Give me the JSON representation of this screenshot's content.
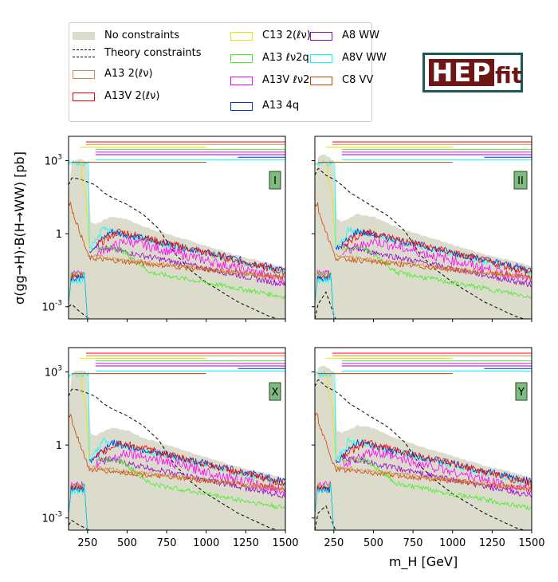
{
  "figure": {
    "y_axis_label": "σ(gg→H)·B(H→WW) [pb]",
    "x_axis_label": "m_H [GeV]",
    "logo": {
      "text_main": "HEP",
      "text_sub": "fit"
    }
  },
  "legend": [
    {
      "label": "No constraints",
      "kind": "fill",
      "color": "#dcdccc"
    },
    {
      "label": "Theory constraints",
      "kind": "dashed",
      "color": "#000000"
    },
    {
      "label": "A13 2(ℓν)",
      "kind": "box",
      "color": "#d08a4a"
    },
    {
      "label": "A13V 2(ℓν)",
      "kind": "box",
      "color": "#ff0000"
    },
    {
      "label": "C13 2(ℓν)",
      "kind": "box",
      "color": "#e6e600"
    },
    {
      "label": "A13 ℓν2q",
      "kind": "box",
      "color": "#44ee22"
    },
    {
      "label": "A13V ℓν2q",
      "kind": "box",
      "color": "#ff00ff"
    },
    {
      "label": "A13 4q",
      "kind": "box",
      "color": "#0033cc"
    },
    {
      "label": "A8 WW",
      "kind": "box",
      "color": "#9900cc"
    },
    {
      "label": "A8V WW",
      "kind": "box",
      "color": "#00ffff"
    },
    {
      "label": "C8 VV",
      "kind": "box",
      "color": "#cc4400"
    }
  ],
  "chart_data": [
    {
      "type": "line",
      "panel_label": "I",
      "xlim": [
        130,
        1500
      ],
      "ylim_log10": [
        -3.5,
        4.0
      ],
      "xticks": [
        "250",
        "500",
        "750",
        "1000",
        "1250",
        "1500"
      ],
      "yticks": [
        "10^3",
        "1",
        "10^-3"
      ],
      "x_tick_labels_shown": false,
      "y_tick_labels_shown": true,
      "series": [
        {
          "name": "No constraints",
          "x": [
            130,
            150,
            180,
            220,
            255,
            265,
            300,
            400,
            500,
            600,
            700,
            800,
            900,
            1000,
            1100,
            1200,
            1300,
            1400,
            1500
          ],
          "log10_upper": [
            1.6,
            2.9,
            3.05,
            3.05,
            2.9,
            0.5,
            0.4,
            0.7,
            0.6,
            0.3,
            0.1,
            -0.1,
            -0.3,
            -0.5,
            -0.7,
            -0.9,
            -1.05,
            -1.2,
            -1.4
          ]
        },
        {
          "name": "Theory constraints",
          "x": [
            130,
            150,
            200,
            260,
            300,
            350,
            400,
            500,
            600,
            700,
            800,
            900,
            1000,
            1100,
            1200,
            1300,
            1400,
            1500
          ],
          "log10": [
            -3.0,
            -2.9,
            -3.2,
            -3.5,
            -3.5,
            -3.5,
            -3.5,
            -3.5,
            -3.5,
            -3.5,
            -3.5,
            -3.5,
            -3.5,
            -3.5,
            -3.5,
            -3.5,
            -3.5,
            -3.5
          ],
          "log10_upper_band": [
            2.0,
            2.3,
            2.25,
            2.1,
            2.0,
            1.7,
            1.5,
            1.2,
            0.8,
            0.2,
            -0.8,
            -1.5,
            -2.0,
            -2.4,
            -2.8,
            -3.1,
            -3.4,
            -3.6
          ]
        }
      ]
    },
    {
      "type": "line",
      "panel_label": "II",
      "xlim": [
        130,
        1500
      ],
      "ylim_log10": [
        -3.5,
        4.0
      ],
      "xticks": [
        "250",
        "500",
        "750",
        "1000",
        "1250",
        "1500"
      ],
      "yticks": [
        "10^3",
        "1",
        "10^-3"
      ],
      "x_tick_labels_shown": false,
      "y_tick_labels_shown": false,
      "series": [
        {
          "name": "No constraints",
          "x": [
            130,
            150,
            180,
            220,
            255,
            265,
            300,
            400,
            500,
            600,
            700,
            800,
            900,
            1000,
            1100,
            1200,
            1300,
            1400,
            1500
          ],
          "log10_upper": [
            2.1,
            3.15,
            3.25,
            3.15,
            2.9,
            0.6,
            0.5,
            0.8,
            0.7,
            0.4,
            0.15,
            -0.05,
            -0.25,
            -0.45,
            -0.65,
            -0.85,
            -1.0,
            -1.15,
            -1.35
          ]
        },
        {
          "name": "Theory constraints",
          "x": [
            130,
            150,
            200,
            260,
            300,
            350,
            400,
            500,
            600,
            700,
            800,
            900,
            1000,
            1100,
            1200,
            1300,
            1400,
            1500
          ],
          "log10": [
            -3.5,
            -2.9,
            -2.4,
            -3.5,
            -3.5,
            -3.5,
            -3.5,
            -3.5,
            -3.5,
            -3.5,
            -3.5,
            -3.5,
            -3.5,
            -3.5,
            -3.5,
            -3.5,
            -3.5,
            -3.5
          ],
          "log10_upper_band": [
            2.4,
            2.7,
            2.4,
            2.2,
            2.0,
            1.7,
            1.5,
            1.1,
            0.7,
            0.1,
            -0.9,
            -1.5,
            -2.0,
            -2.4,
            -2.8,
            -3.1,
            -3.4,
            -3.6
          ]
        }
      ]
    },
    {
      "type": "line",
      "panel_label": "X",
      "xlim": [
        130,
        1500
      ],
      "ylim_log10": [
        -3.5,
        4.0
      ],
      "xticks": [
        "250",
        "500",
        "750",
        "1000",
        "1250",
        "1500"
      ],
      "yticks": [
        "10^3",
        "1",
        "10^-3"
      ],
      "x_tick_labels_shown": true,
      "y_tick_labels_shown": true,
      "series": [
        {
          "name": "No constraints",
          "x": [
            130,
            150,
            180,
            220,
            255,
            265,
            300,
            400,
            500,
            600,
            700,
            800,
            900,
            1000,
            1100,
            1200,
            1300,
            1400,
            1500
          ],
          "log10_upper": [
            1.6,
            2.9,
            3.05,
            3.05,
            2.9,
            0.5,
            0.4,
            0.7,
            0.6,
            0.3,
            0.1,
            -0.1,
            -0.3,
            -0.5,
            -0.7,
            -0.9,
            -1.05,
            -1.2,
            -1.4
          ]
        },
        {
          "name": "Theory constraints",
          "x": [
            130,
            150,
            200,
            260,
            300,
            350,
            400,
            500,
            600,
            700,
            800,
            900,
            1000,
            1100,
            1200,
            1300,
            1400,
            1500
          ],
          "log10": [
            -3.3,
            -3.1,
            -3.3,
            -3.5,
            -3.5,
            -3.5,
            -3.5,
            -3.5,
            -3.5,
            -3.5,
            -3.5,
            -3.5,
            -3.5,
            -3.5,
            -3.5,
            -3.5,
            -3.5,
            -3.5
          ],
          "log10_upper_band": [
            2.0,
            2.3,
            2.25,
            2.1,
            2.0,
            1.7,
            1.5,
            1.2,
            0.8,
            0.2,
            -0.8,
            -1.5,
            -2.0,
            -2.4,
            -2.8,
            -3.1,
            -3.4,
            -3.6
          ]
        }
      ]
    },
    {
      "type": "line",
      "panel_label": "Y",
      "xlim": [
        130,
        1500
      ],
      "ylim_log10": [
        -3.5,
        4.0
      ],
      "xticks": [
        "250",
        "500",
        "750",
        "1000",
        "1250",
        "1500"
      ],
      "yticks": [
        "10^3",
        "1",
        "10^-3"
      ],
      "x_tick_labels_shown": true,
      "y_tick_labels_shown": false,
      "series": [
        {
          "name": "No constraints",
          "x": [
            130,
            150,
            180,
            220,
            255,
            265,
            300,
            400,
            500,
            600,
            700,
            800,
            900,
            1000,
            1100,
            1200,
            1300,
            1400,
            1500
          ],
          "log10_upper": [
            2.1,
            3.15,
            3.25,
            3.15,
            2.9,
            0.6,
            0.5,
            0.8,
            0.7,
            0.4,
            0.15,
            -0.05,
            -0.25,
            -0.45,
            -0.65,
            -0.85,
            -1.0,
            -1.15,
            -1.35
          ]
        },
        {
          "name": "Theory constraints",
          "x": [
            130,
            150,
            200,
            260,
            300,
            350,
            400,
            500,
            600,
            700,
            800,
            900,
            1000,
            1100,
            1200,
            1300,
            1400,
            1500
          ],
          "log10": [
            -3.5,
            -2.8,
            -2.5,
            -3.5,
            -3.5,
            -3.5,
            -3.5,
            -3.5,
            -3.5,
            -3.5,
            -3.5,
            -3.5,
            -3.5,
            -3.5,
            -3.5,
            -3.5,
            -3.5,
            -3.5
          ],
          "log10_upper_band": [
            2.4,
            2.7,
            2.4,
            2.2,
            2.0,
            1.7,
            1.5,
            1.1,
            0.7,
            0.1,
            -0.9,
            -1.5,
            -2.0,
            -2.4,
            -2.8,
            -3.1,
            -3.4,
            -3.6
          ]
        }
      ]
    }
  ],
  "range_bars": [
    {
      "color": "#ff0000",
      "x": [
        240,
        1500
      ]
    },
    {
      "color": "#d08a4a",
      "x": [
        240,
        1500
      ]
    },
    {
      "color": "#e6e600",
      "x": [
        200,
        1000
      ]
    },
    {
      "color": "#44ee22",
      "x": [
        300,
        1500
      ]
    },
    {
      "color": "#ff00ff",
      "x": [
        300,
        1500
      ]
    },
    {
      "color": "#9900cc",
      "x": [
        300,
        1500
      ]
    },
    {
      "color": "#0033cc",
      "x": [
        1200,
        1500
      ]
    },
    {
      "color": "#00ffff",
      "x": [
        300,
        1500
      ]
    },
    {
      "color": "#cc4400",
      "x": [
        150,
        1000
      ]
    }
  ]
}
